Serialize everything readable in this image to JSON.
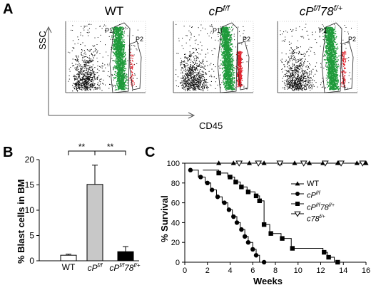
{
  "panels": {
    "A": {
      "label": "A",
      "y_axis": "SSC",
      "x_axis": "CD45",
      "plots": [
        {
          "title_main": "WT",
          "title_sup": "",
          "title_tail": ""
        },
        {
          "title_main": "cP",
          "title_sup": "f/f",
          "title_tail": ""
        },
        {
          "title_main": "cP",
          "title_sup": "f/f",
          "title_tail": "78",
          "title_sup2": "f/+"
        }
      ],
      "gates": [
        "P1",
        "P2"
      ]
    },
    "B": {
      "label": "B"
    },
    "C": {
      "label": "C"
    }
  },
  "chart_data": [
    {
      "type": "bar",
      "panel": "B",
      "categories": [
        "WT",
        "cPf/f",
        "cPf/f78f/+"
      ],
      "category_display": [
        {
          "main": "WT",
          "sup": "",
          "tail": "",
          "sup2": ""
        },
        {
          "main": "cP",
          "sup": "f/f",
          "tail": "",
          "sup2": ""
        },
        {
          "main": "cP",
          "sup": "f/f",
          "tail": "78",
          "sup2": "f/+"
        }
      ],
      "values": [
        1.1,
        15.1,
        1.8
      ],
      "errors": [
        0.2,
        3.8,
        1.0
      ],
      "bar_colors": [
        "#ffffff",
        "#c8c8c8",
        "#000000"
      ],
      "ylabel": "% Blast cells in BM",
      "ylim": [
        0,
        20
      ],
      "yticks": [
        0,
        5,
        10,
        15,
        20
      ],
      "significance": [
        {
          "pair": [
            0,
            1
          ],
          "label": "**"
        },
        {
          "pair": [
            1,
            2
          ],
          "label": "**"
        }
      ]
    },
    {
      "type": "line",
      "panel": "C",
      "xlabel": "Weeks",
      "ylabel": "% Survival",
      "xlim": [
        0,
        16
      ],
      "ylim": [
        0,
        100
      ],
      "xticks": [
        0,
        2,
        4,
        6,
        8,
        10,
        12,
        14,
        16
      ],
      "yticks": [
        0,
        20,
        40,
        60,
        80,
        100
      ],
      "series": [
        {
          "name": "WT",
          "marker": "triangle-up",
          "x": [
            16,
            13.5,
            12.2,
            11,
            9.7,
            8.4,
            7,
            5.7,
            4.3,
            3,
            15.2
          ],
          "y": [
            100,
            100,
            100,
            100,
            100,
            100,
            100,
            100,
            100,
            100,
            100
          ]
        },
        {
          "name": "cPf/f",
          "marker": "circle",
          "x": [
            0.5,
            1.4,
            2,
            2.4,
            2.9,
            3.5,
            3.9,
            4.3,
            4.6,
            5,
            5.3,
            5.6,
            6,
            6.3,
            7
          ],
          "y": [
            93,
            86,
            80,
            73,
            66,
            60,
            53,
            46,
            40,
            33,
            26,
            20,
            13,
            7,
            0
          ],
          "step_x": [
            0.5,
            1.2,
            1.8,
            2.3,
            2.8,
            3.3,
            3.8,
            4.2,
            4.6,
            4.9,
            5.3,
            5.6,
            6,
            6.3,
            6.6
          ],
          "step_y": [
            93,
            86,
            80,
            73,
            66,
            60,
            53,
            46,
            40,
            33,
            26,
            20,
            13,
            7,
            0
          ]
        },
        {
          "name": "cPf/f78f/+",
          "marker": "square",
          "x": [
            3,
            4,
            4.5,
            5,
            5.6,
            6.3,
            6.6,
            7,
            7.6,
            8.6,
            9.5,
            12.3,
            12.7,
            13.5
          ],
          "y": [
            90,
            86,
            81,
            76,
            71,
            67,
            62,
            38,
            29,
            24,
            14,
            10,
            5,
            0
          ],
          "step_x": [
            3,
            3.8,
            4.4,
            4.9,
            5.5,
            6.2,
            6.6,
            7,
            7.5,
            8.5,
            9.4,
            12.2,
            12.6,
            13.2
          ],
          "step_y": [
            90,
            86,
            81,
            76,
            71,
            67,
            62,
            38,
            29,
            24,
            14,
            10,
            5,
            0
          ]
        },
        {
          "name": "c78f/+",
          "marker": "triangle-down-open",
          "x": [
            4.8,
            6.5,
            8.4,
            10.5,
            12.4,
            13.8,
            15.7
          ],
          "y": [
            100,
            100,
            100,
            100,
            100,
            100,
            100
          ]
        }
      ],
      "legend": [
        {
          "main": "WT",
          "sup": "",
          "tail": "",
          "sup2": ""
        },
        {
          "main": "cP",
          "sup": "f/f",
          "tail": "",
          "sup2": ""
        },
        {
          "main": "cP",
          "sup": "f/f",
          "tail": "78",
          "sup2": "f/+"
        },
        {
          "main": "c78",
          "sup": "f/+",
          "tail": "",
          "sup2": ""
        }
      ],
      "legend_position": "center-right"
    }
  ]
}
